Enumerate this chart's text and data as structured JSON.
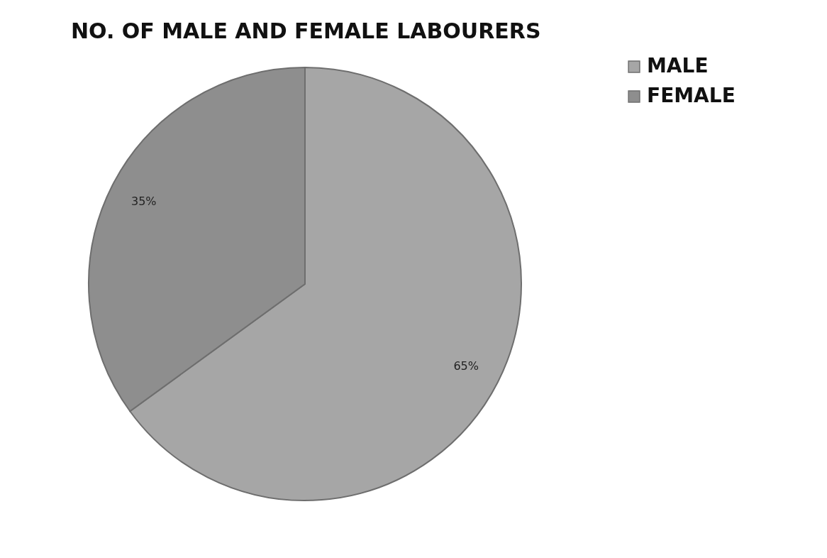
{
  "chart_data": {
    "type": "pie",
    "title": "NO. OF MALE AND FEMALE LABOURERS",
    "categories": [
      "MALE",
      "FEMALE"
    ],
    "values": [
      65,
      35
    ],
    "value_labels": [
      "65%",
      "35%"
    ],
    "colors": [
      "#a6a6a6",
      "#8e8e8e"
    ],
    "legend": "right"
  }
}
